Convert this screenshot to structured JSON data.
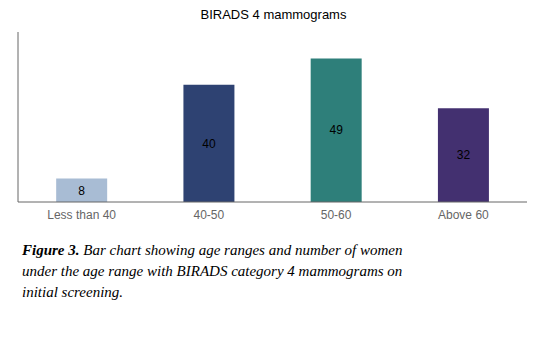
{
  "chart_data": {
    "type": "bar",
    "title": "BIRADS 4 mammograms",
    "categories": [
      "Less than 40",
      "40-50",
      "50-60",
      "Above 60"
    ],
    "values": [
      8,
      40,
      49,
      32
    ],
    "colors": [
      "#a8bcd4",
      "#2e4272",
      "#2e7f7a",
      "#433070"
    ],
    "ylim": [
      0,
      58
    ],
    "grid": false,
    "data_labels": true,
    "tick_labels": "x",
    "caption": [
      "Figure 3. Bar chart showing age ranges and number of women",
      "under the age range with BIRADS category 4 mammograms on",
      "initial screening."
    ]
  }
}
